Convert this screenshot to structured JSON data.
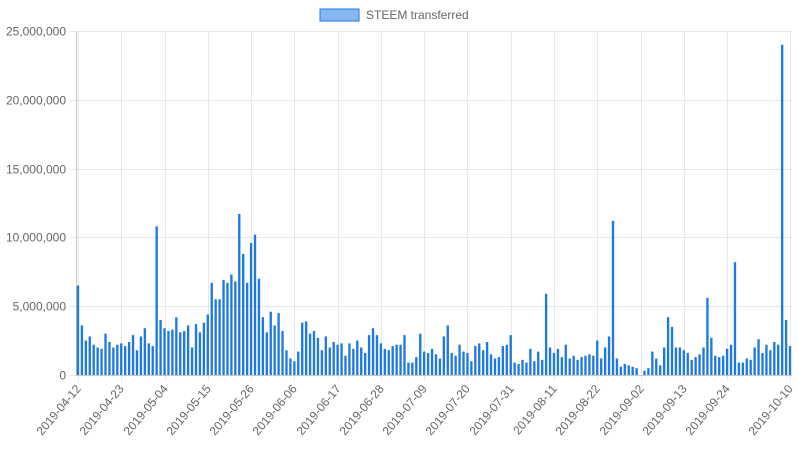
{
  "chart_data": {
    "type": "bar",
    "title": "",
    "xlabel": "",
    "ylabel": "",
    "ylim": [
      0,
      25000000
    ],
    "y_ticks": [
      0,
      5000000,
      10000000,
      15000000,
      20000000,
      25000000
    ],
    "y_tick_labels": [
      "0",
      "5,000,000",
      "10,000,000",
      "15,000,000",
      "20,000,000",
      "25,000,000"
    ],
    "x_range": [
      "2019-04-12",
      "2019-10-10"
    ],
    "x_tick_labels": [
      "2019-04-12",
      "2019-04-23",
      "2019-05-04",
      "2019-05-15",
      "2019-05-26",
      "2019-06-06",
      "2019-06-17",
      "2019-06-28",
      "2019-07-09",
      "2019-07-20",
      "2019-07-31",
      "2019-08-11",
      "2019-08-22",
      "2019-09-02",
      "2019-09-13",
      "2019-09-24",
      "2019-10-10"
    ],
    "grid": true,
    "legend_position": "top-center",
    "colors": {
      "bar": "#1f7ae0",
      "legend_fill": "#85b8f2",
      "legend_stroke": "#1f7ae0",
      "grid": "#e6e6e6",
      "axis": "#c8c8c8",
      "text": "#666666"
    },
    "series": [
      {
        "name": "STEEM transferred",
        "values": [
          6500000,
          3600000,
          2500000,
          2800000,
          2200000,
          2000000,
          1900000,
          3000000,
          2400000,
          2000000,
          2200000,
          2300000,
          2100000,
          2400000,
          2900000,
          1800000,
          2800000,
          3400000,
          2300000,
          2100000,
          10800000,
          4000000,
          3400000,
          3200000,
          3300000,
          4200000,
          3100000,
          3200000,
          3600000,
          2000000,
          3700000,
          3100000,
          3800000,
          4400000,
          6700000,
          5500000,
          5500000,
          6900000,
          6700000,
          7300000,
          6800000,
          11700000,
          8800000,
          6700000,
          9600000,
          10200000,
          7000000,
          4200000,
          3100000,
          4600000,
          3600000,
          4500000,
          3200000,
          1800000,
          1200000,
          1000000,
          1700000,
          3800000,
          3900000,
          3000000,
          3200000,
          2700000,
          1800000,
          2800000,
          2000000,
          2400000,
          2200000,
          2300000,
          1400000,
          2300000,
          1900000,
          2500000,
          2000000,
          1600000,
          2900000,
          3400000,
          2900000,
          2300000,
          1900000,
          1800000,
          2100000,
          2200000,
          2200000,
          2900000,
          900000,
          900000,
          1300000,
          3000000,
          1700000,
          1600000,
          1900000,
          1500000,
          1200000,
          2800000,
          3600000,
          1600000,
          1400000,
          2200000,
          1700000,
          1600000,
          1000000,
          2100000,
          2300000,
          1800000,
          2400000,
          1500000,
          1200000,
          1300000,
          2100000,
          2200000,
          2900000,
          900000,
          800000,
          1100000,
          900000,
          1900000,
          1000000,
          1700000,
          1100000,
          5900000,
          2000000,
          1600000,
          1900000,
          1300000,
          2200000,
          1200000,
          1400000,
          1100000,
          1300000,
          1400000,
          1500000,
          1400000,
          2500000,
          1200000,
          2000000,
          2800000,
          11200000,
          1200000,
          600000,
          800000,
          700000,
          600000,
          500000,
          0,
          300000,
          500000,
          1700000,
          1200000,
          700000,
          2000000,
          4200000,
          3500000,
          2000000,
          2000000,
          1800000,
          1600000,
          1100000,
          1300000,
          1500000,
          2000000,
          5600000,
          2700000,
          1400000,
          1300000,
          1400000,
          1900000,
          2200000,
          8200000,
          900000,
          900000,
          1200000,
          1100000,
          2000000,
          2600000,
          1600000,
          2200000,
          1800000,
          2400000,
          2200000,
          24000000,
          4000000,
          2100000
        ]
      }
    ]
  }
}
